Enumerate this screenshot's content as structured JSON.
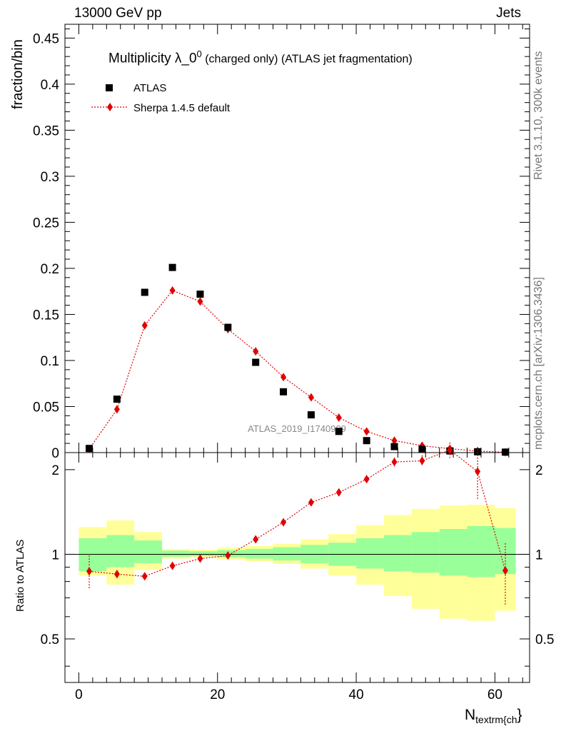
{
  "header": {
    "left": "13000 GeV pp",
    "right": "Jets"
  },
  "side_labels": {
    "rivet": "Rivet 3.1.10,  300k events",
    "mcplots": "mcplots.cern.ch [arXiv:1306.3436]"
  },
  "chart_data": {
    "type": "scatter",
    "title_main": "Multiplicity λ_0",
    "title_sup": "0",
    "title_rest": " (charged only) (ATLAS jet fragmentation)",
    "watermark": "ATLAS_2019_I1740909",
    "xlabel_main": "N",
    "xlabel_sub": "textrm{ch",
    "xlabel_end": "}",
    "ylabel": "fraction/bin",
    "ratio_ylabel": "Ratio to ATLAS",
    "xlim": [
      -2,
      65
    ],
    "ylim": [
      0,
      0.465
    ],
    "ratio_ylim": [
      0.35,
      2.3
    ],
    "x_ticks": [
      "0",
      "20",
      "40",
      "60"
    ],
    "y_ticks": [
      "0",
      "0.05",
      "0.1",
      "0.15",
      "0.2",
      "0.25",
      "0.3",
      "0.35",
      "0.4",
      "0.45"
    ],
    "ratio_ticks": [
      "0.5",
      "1",
      "2"
    ],
    "x": [
      1.5,
      5.5,
      9.5,
      13.5,
      17.5,
      21.5,
      25.5,
      29.5,
      33.5,
      37.5,
      41.5,
      45.5,
      49.5,
      53.5,
      57.5,
      61.5
    ],
    "bin_edges": [
      0,
      4,
      8,
      12,
      16,
      20,
      24,
      28,
      32,
      36,
      40,
      44,
      48,
      52,
      56,
      60,
      63
    ],
    "legend": [
      "ATLAS",
      "Sherpa 1.4.5 default"
    ],
    "series": [
      {
        "name": "ATLAS",
        "color": "#000000",
        "marker": "square",
        "values": [
          0.0045,
          0.058,
          0.174,
          0.201,
          0.172,
          0.136,
          0.098,
          0.066,
          0.041,
          0.023,
          0.013,
          0.0065,
          0.0035,
          0.0018,
          0.0009,
          0.0005
        ]
      },
      {
        "name": "Sherpa 1.4.5 default",
        "color": "#e00000",
        "marker": "diamond",
        "values": [
          0.0039,
          0.047,
          0.138,
          0.176,
          0.164,
          0.134,
          0.11,
          0.082,
          0.06,
          0.038,
          0.023,
          0.013,
          0.0075,
          0.0042,
          0.0017,
          0.0004
        ],
        "ratio": [
          0.87,
          0.85,
          0.835,
          0.91,
          0.965,
          0.99,
          1.13,
          1.3,
          1.53,
          1.66,
          1.85,
          2.13,
          2.15,
          2.35,
          1.97,
          0.875
        ],
        "ratio_err": [
          0.12,
          0.03,
          0.02,
          0.015,
          0.01,
          0.01,
          0.015,
          0.03,
          0.04,
          0.05,
          0.06,
          0.08,
          0.1,
          0.15,
          0.4,
          0.22
        ]
      }
    ],
    "band_inner": [
      [
        0.87,
        1.14
      ],
      [
        0.9,
        1.17
      ],
      [
        0.93,
        1.12
      ],
      [
        0.98,
        1.03
      ],
      [
        0.985,
        1.025
      ],
      [
        0.975,
        1.035
      ],
      [
        0.965,
        1.045
      ],
      [
        0.95,
        1.06
      ],
      [
        0.93,
        1.08
      ],
      [
        0.91,
        1.1
      ],
      [
        0.89,
        1.14
      ],
      [
        0.87,
        1.17
      ],
      [
        0.86,
        1.2
      ],
      [
        0.84,
        1.23
      ],
      [
        0.83,
        1.26
      ],
      [
        0.85,
        1.24
      ]
    ],
    "band_outer": [
      [
        0.84,
        1.25
      ],
      [
        0.78,
        1.32
      ],
      [
        0.88,
        1.2
      ],
      [
        0.965,
        1.045
      ],
      [
        0.975,
        1.04
      ],
      [
        0.96,
        1.055
      ],
      [
        0.945,
        1.07
      ],
      [
        0.925,
        1.09
      ],
      [
        0.89,
        1.13
      ],
      [
        0.84,
        1.18
      ],
      [
        0.78,
        1.27
      ],
      [
        0.71,
        1.38
      ],
      [
        0.64,
        1.45
      ],
      [
        0.59,
        1.49
      ],
      [
        0.58,
        1.5
      ],
      [
        0.63,
        1.46
      ]
    ],
    "band_colors": {
      "inner": "#99ff99",
      "outer": "#ffff99"
    }
  }
}
